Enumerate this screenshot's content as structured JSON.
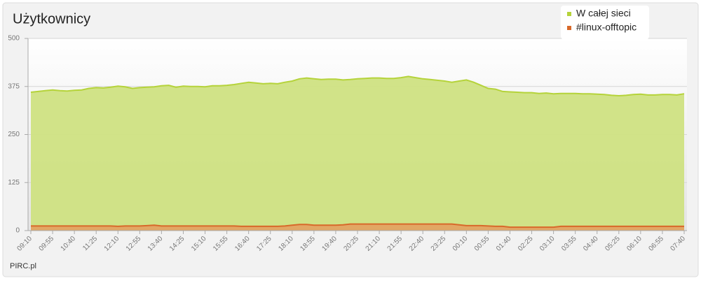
{
  "chart_data": {
    "type": "area",
    "title": "Użytkownicy",
    "footer": "PIRC.pl",
    "categories": [
      "09:10",
      null,
      null,
      "09:55",
      null,
      null,
      "10:40",
      null,
      null,
      "11:25",
      null,
      null,
      "12:10",
      null,
      null,
      "12:55",
      null,
      null,
      "13:40",
      null,
      null,
      "14:25",
      null,
      null,
      "15:10",
      null,
      null,
      "15:55",
      null,
      null,
      "16:40",
      null,
      null,
      "17:25",
      null,
      null,
      "18:10",
      null,
      null,
      "18:55",
      null,
      null,
      "19:40",
      null,
      null,
      "20:25",
      null,
      null,
      "21:10",
      null,
      null,
      "21:55",
      null,
      null,
      "22:40",
      null,
      null,
      "23:25",
      null,
      null,
      "00:10",
      null,
      null,
      "00:55",
      null,
      null,
      "01:40",
      null,
      null,
      "02:25",
      null,
      null,
      "03:10",
      null,
      null,
      "03:55",
      null,
      null,
      "04:40",
      null,
      null,
      "05:25",
      null,
      null,
      "06:10",
      null,
      null,
      "06:55",
      null,
      null,
      "07:40"
    ],
    "series": [
      {
        "name": "W całej sieci",
        "color": "#b5d33a",
        "fill": "#cfe282",
        "values": [
          360,
          362,
          364,
          366,
          364,
          363,
          365,
          366,
          370,
          372,
          371,
          373,
          376,
          374,
          370,
          372,
          373,
          374,
          377,
          378,
          373,
          376,
          375,
          375,
          374,
          377,
          377,
          378,
          380,
          383,
          386,
          384,
          382,
          383,
          382,
          386,
          389,
          395,
          397,
          395,
          393,
          394,
          394,
          392,
          393,
          395,
          396,
          397,
          397,
          396,
          396,
          398,
          401,
          398,
          395,
          393,
          391,
          389,
          386,
          389,
          392,
          386,
          378,
          370,
          368,
          362,
          361,
          360,
          359,
          359,
          357,
          358,
          356,
          357,
          357,
          357,
          356,
          356,
          355,
          354,
          352,
          351,
          352,
          354,
          355,
          353,
          353,
          354,
          354,
          353,
          356
        ]
      },
      {
        "name": "#linux-offtopic",
        "color": "#d8692a",
        "fill": "#e3a362",
        "values": [
          12,
          12,
          12,
          12,
          12,
          12,
          12,
          12,
          12,
          12,
          12,
          12,
          11,
          12,
          12,
          12,
          13,
          14,
          12,
          12,
          12,
          12,
          12,
          12,
          12,
          12,
          12,
          12,
          12,
          11,
          11,
          11,
          11,
          11,
          11,
          12,
          14,
          16,
          16,
          14,
          14,
          14,
          14,
          15,
          17,
          17,
          17,
          17,
          17,
          17,
          17,
          17,
          17,
          17,
          17,
          17,
          17,
          17,
          17,
          15,
          13,
          13,
          13,
          12,
          11,
          11,
          9,
          9,
          9,
          9,
          9,
          9,
          9,
          11,
          11,
          11,
          11,
          11,
          11,
          11,
          11,
          11,
          11,
          11,
          11,
          11,
          11,
          11,
          11,
          11,
          11
        ]
      }
    ],
    "ylim": [
      0,
      500
    ],
    "yticks": [
      0,
      125,
      250,
      375,
      500
    ],
    "grid": true,
    "legend": "top-right"
  }
}
